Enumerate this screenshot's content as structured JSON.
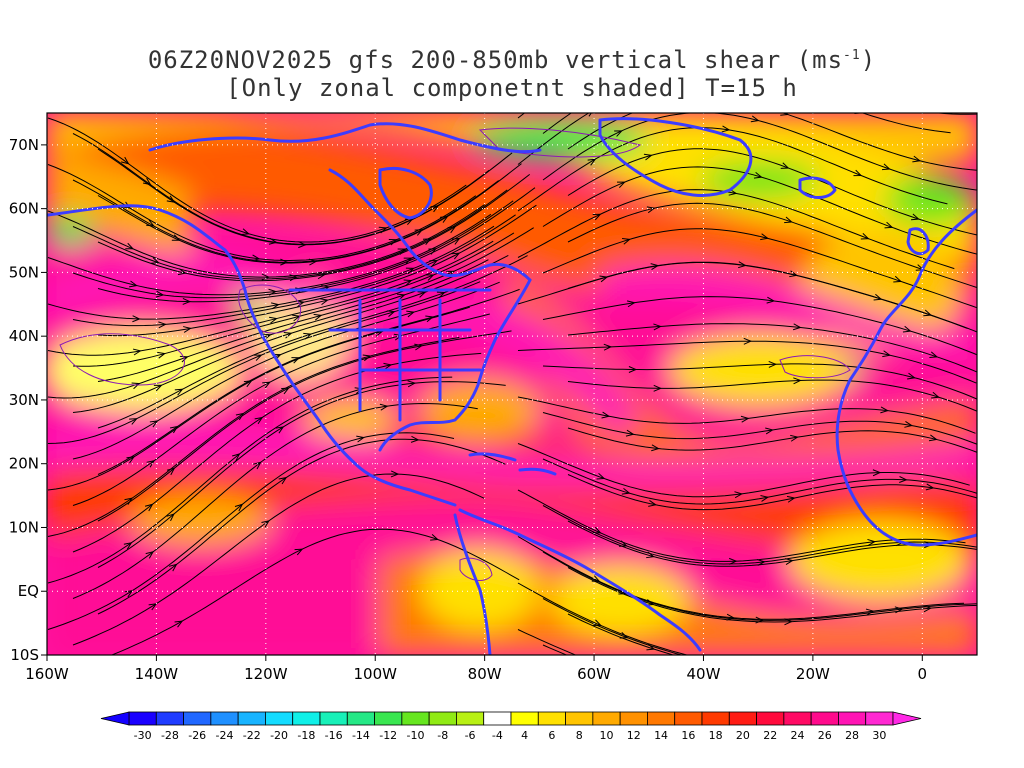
{
  "title": {
    "line1": "06Z20NOV2025 gfs 200-850mb vertical shear (ms",
    "line1_sup": "-1",
    "line1_end": ")",
    "line2": "[Only zonal componetnt shaded] T=15 h"
  },
  "axes": {
    "lat_ticks": [
      "70N",
      "60N",
      "50N",
      "40N",
      "30N",
      "20N",
      "10N",
      "EQ",
      "10S"
    ],
    "lon_ticks": [
      "160W",
      "140W",
      "120W",
      "100W",
      "80W",
      "60W",
      "40W",
      "20W",
      "0"
    ],
    "lat_values": [
      70,
      60,
      50,
      40,
      30,
      20,
      10,
      0,
      -10
    ],
    "lon_values": [
      -160,
      -140,
      -120,
      -100,
      -80,
      -60,
      -40,
      -20,
      0
    ],
    "lon_range": [
      -160,
      10
    ],
    "lat_range": [
      -10,
      75
    ]
  },
  "colorbar": {
    "labels": [
      "-30",
      "-28",
      "-26",
      "-24",
      "-22",
      "-20",
      "-18",
      "-16",
      "-14",
      "-12",
      "-10",
      "-8",
      "-6",
      "-4",
      "4",
      "6",
      "8",
      "10",
      "12",
      "14",
      "16",
      "18",
      "20",
      "22",
      "24",
      "26",
      "28",
      "30"
    ],
    "colors": [
      "#1a00ff",
      "#1f3cff",
      "#2067ff",
      "#1f90ff",
      "#18b4ff",
      "#14dcff",
      "#10f0e8",
      "#18f0b8",
      "#25e886",
      "#39e650",
      "#66e61f",
      "#90ea14",
      "#b8f014",
      "#ffffff",
      "#ffff00",
      "#ffe000",
      "#ffc400",
      "#ffaa00",
      "#ff9100",
      "#ff7800",
      "#ff5a00",
      "#ff3a00",
      "#ff1c14",
      "#ff0a3c",
      "#ff0a64",
      "#ff0a8c",
      "#ff14b4",
      "#ff28d2"
    ]
  },
  "layers": {
    "coastline_color": "#3c3cff",
    "streamline_color": "#000000",
    "contour_color": "#8c1ab4"
  }
}
